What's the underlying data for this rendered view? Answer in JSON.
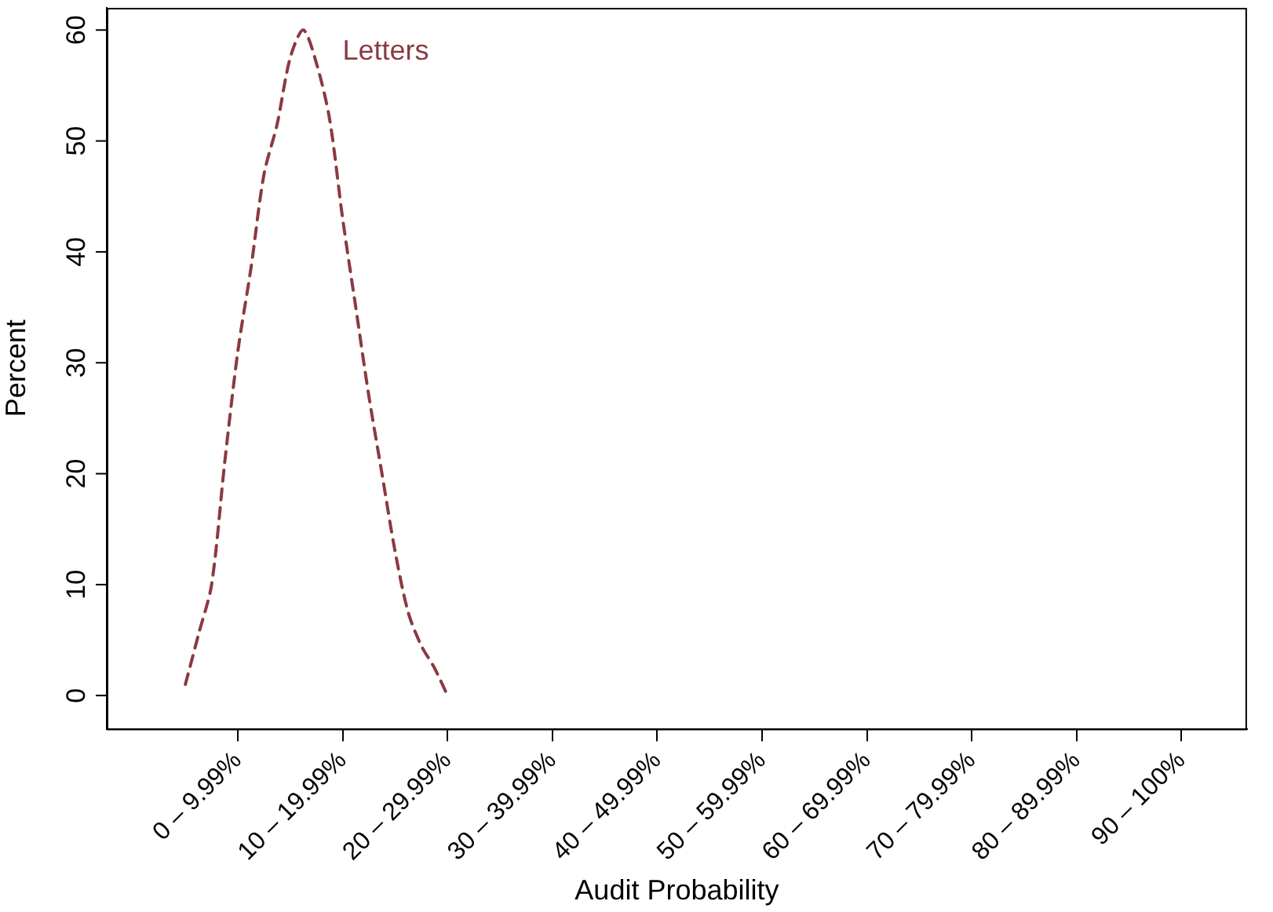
{
  "chart_data": {
    "type": "line",
    "xlabel": "Audit Probability",
    "ylabel": "Percent",
    "categories": [
      null,
      null,
      null,
      null,
      null,
      null,
      null,
      null,
      null,
      null,
      "0 – 9.99%",
      null,
      null,
      null,
      null,
      null,
      null,
      null,
      "10 – 19.99%",
      null,
      null,
      null,
      null,
      null,
      null,
      null,
      "20 – 29.99%",
      null,
      null,
      null,
      null,
      null,
      null,
      null,
      "30 – 39.99%",
      null,
      null,
      null,
      null,
      null,
      null,
      null,
      "40 – 49.99%",
      null,
      null,
      null,
      null,
      null,
      null,
      null,
      "50 – 59.99%",
      null,
      null,
      null,
      null,
      null,
      null,
      null,
      "60 – 69.99%",
      null,
      null,
      null,
      null,
      null,
      null,
      null,
      "70 – 79.99%",
      null,
      null,
      null,
      null,
      null,
      null,
      null,
      "80 – 89.99%",
      null,
      null,
      null,
      null,
      null,
      null,
      null,
      "90 – 100%",
      null,
      null,
      null,
      null,
      null
    ],
    "ylim": [
      -3,
      62
    ],
    "yticks": [
      0,
      10,
      20,
      30,
      40,
      50,
      60
    ],
    "grid": false,
    "legend": false,
    "marker": "none",
    "line_style": "dashed",
    "series": [
      {
        "name": "Letters",
        "color": "#8b3a40",
        "values": [
          null,
          null,
          null,
          null,
          null,
          null,
          1.0,
          5.5,
          10,
          21,
          31,
          38.5,
          47,
          51.5,
          57.5,
          60,
          57,
          52,
          43,
          35,
          27,
          20,
          13,
          7.5,
          4.5,
          2.5,
          0,
          null,
          null,
          null,
          null,
          null,
          null,
          null,
          null,
          null,
          null,
          null,
          null,
          null,
          null,
          null,
          null,
          null,
          null,
          null,
          null,
          null,
          null,
          null,
          null,
          null,
          null,
          null,
          null,
          null,
          null,
          null,
          null,
          null,
          null,
          null,
          null,
          null,
          null,
          null,
          null,
          null,
          null,
          null,
          null,
          null,
          null,
          null,
          null,
          null,
          null,
          null,
          null,
          null,
          null,
          null,
          null,
          null,
          null,
          null,
          null,
          null
        ]
      }
    ]
  }
}
